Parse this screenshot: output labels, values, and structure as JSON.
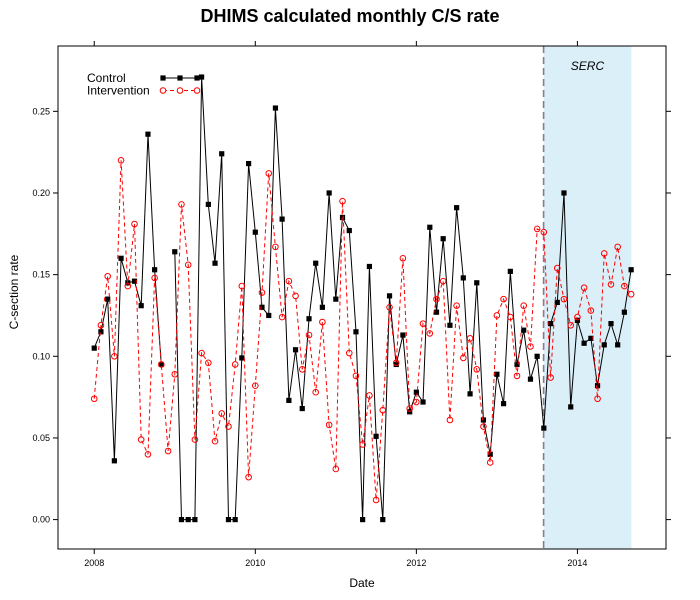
{
  "chart_data": {
    "type": "line",
    "title": "DHIMS calculated monthly C/S rate",
    "xlabel": "Date",
    "ylabel": "C-section rate",
    "xlim": [
      2007.55,
      2015.1
    ],
    "ylim": [
      -0.018,
      0.29
    ],
    "x_ticks": [
      2008,
      2010,
      2012,
      2014
    ],
    "x_tick_labels": [
      "2008",
      "2010",
      "2012",
      "2014"
    ],
    "y_ticks": [
      0.0,
      0.05,
      0.1,
      0.15,
      0.2,
      0.25
    ],
    "y_tick_labels": [
      "0.00",
      "0.05",
      "0.10",
      "0.15",
      "0.20",
      "0.25"
    ],
    "grid": false,
    "legend_position": "top-left",
    "annotation": {
      "label": "SERC",
      "vline_x": 2013.58,
      "shade_start": 2013.58,
      "shade_end": 2014.67,
      "shade_color": "#dbeff8",
      "line_color": "#8c7a8c"
    },
    "series": [
      {
        "name": "Control",
        "color": "#000000",
        "style": "solid",
        "marker": "square",
        "x": [
          2008.0,
          2008.083,
          2008.167,
          2008.25,
          2008.333,
          2008.417,
          2008.5,
          2008.583,
          2008.667,
          2008.75,
          2008.833,
          2008.917,
          2009.0,
          2009.083,
          2009.167,
          2009.25,
          2009.333,
          2009.417,
          2009.5,
          2009.583,
          2009.667,
          2009.75,
          2009.833,
          2009.917,
          2010.0,
          2010.083,
          2010.167,
          2010.25,
          2010.333,
          2010.417,
          2010.5,
          2010.583,
          2010.667,
          2010.75,
          2010.833,
          2010.917,
          2011.0,
          2011.083,
          2011.167,
          2011.25,
          2011.333,
          2011.417,
          2011.5,
          2011.583,
          2011.667,
          2011.75,
          2011.833,
          2011.917,
          2012.0,
          2012.083,
          2012.167,
          2012.25,
          2012.333,
          2012.417,
          2012.5,
          2012.583,
          2012.667,
          2012.75,
          2012.833,
          2012.917,
          2013.0,
          2013.083,
          2013.167,
          2013.25,
          2013.333,
          2013.417,
          2013.5,
          2013.583,
          2013.667,
          2013.75,
          2013.833,
          2013.917,
          2014.0,
          2014.083,
          2014.167,
          2014.25,
          2014.333,
          2014.417,
          2014.5,
          2014.583,
          2014.667
        ],
        "values": [
          0.105,
          0.115,
          0.135,
          0.036,
          0.16,
          0.145,
          0.146,
          0.131,
          0.236,
          0.153,
          0.095,
          null,
          0.164,
          0.0,
          0.0,
          0.0,
          0.271,
          0.193,
          0.157,
          0.224,
          0.0,
          0.0,
          0.099,
          0.218,
          0.176,
          0.13,
          0.125,
          0.252,
          0.184,
          0.073,
          0.104,
          0.068,
          0.123,
          0.157,
          0.13,
          0.2,
          0.135,
          0.185,
          0.177,
          0.115,
          0.0,
          0.155,
          0.051,
          0.0,
          0.137,
          0.095,
          0.113,
          0.066,
          0.078,
          0.072,
          0.179,
          0.127,
          0.172,
          0.119,
          0.191,
          0.148,
          0.077,
          0.145,
          0.061,
          0.04,
          0.089,
          0.071,
          0.152,
          0.095,
          0.116,
          0.086,
          0.1,
          0.056,
          0.12,
          0.133,
          0.2,
          0.069,
          0.122,
          0.108,
          0.111,
          0.082,
          0.107,
          0.12,
          0.107,
          0.127,
          0.153
        ]
      },
      {
        "name": "Intervention",
        "color": "#ff0000",
        "style": "dashed",
        "marker": "circle",
        "x": [
          2008.0,
          2008.083,
          2008.167,
          2008.25,
          2008.333,
          2008.417,
          2008.5,
          2008.583,
          2008.667,
          2008.75,
          2008.833,
          2008.917,
          2009.0,
          2009.083,
          2009.167,
          2009.25,
          2009.333,
          2009.417,
          2009.5,
          2009.583,
          2009.667,
          2009.75,
          2009.833,
          2009.917,
          2010.0,
          2010.083,
          2010.167,
          2010.25,
          2010.333,
          2010.417,
          2010.5,
          2010.583,
          2010.667,
          2010.75,
          2010.833,
          2010.917,
          2011.0,
          2011.083,
          2011.167,
          2011.25,
          2011.333,
          2011.417,
          2011.5,
          2011.583,
          2011.667,
          2011.75,
          2011.833,
          2011.917,
          2012.0,
          2012.083,
          2012.167,
          2012.25,
          2012.333,
          2012.417,
          2012.5,
          2012.583,
          2012.667,
          2012.75,
          2012.833,
          2012.917,
          2013.0,
          2013.083,
          2013.167,
          2013.25,
          2013.333,
          2013.417,
          2013.5,
          2013.583,
          2013.667,
          2013.75,
          2013.833,
          2013.917,
          2014.0,
          2014.083,
          2014.167,
          2014.25,
          2014.333,
          2014.417,
          2014.5,
          2014.583,
          2014.667
        ],
        "values": [
          0.074,
          0.119,
          0.149,
          0.1,
          0.22,
          0.143,
          0.181,
          0.049,
          0.04,
          0.148,
          0.095,
          0.042,
          0.089,
          0.193,
          0.156,
          0.049,
          0.102,
          0.096,
          0.048,
          0.065,
          0.057,
          0.095,
          0.143,
          0.026,
          0.082,
          0.139,
          0.212,
          0.167,
          0.124,
          0.146,
          0.137,
          0.092,
          0.113,
          0.078,
          0.121,
          0.058,
          0.031,
          0.195,
          0.102,
          0.088,
          0.046,
          0.076,
          0.012,
          0.067,
          0.13,
          0.096,
          0.16,
          0.068,
          0.072,
          0.12,
          0.114,
          0.135,
          0.146,
          0.061,
          0.131,
          0.099,
          0.111,
          0.092,
          0.057,
          0.035,
          0.125,
          0.135,
          0.124,
          0.088,
          0.131,
          0.106,
          0.178,
          0.176,
          0.087,
          0.154,
          0.135,
          0.119,
          0.124,
          0.142,
          0.128,
          0.074,
          0.163,
          0.144,
          0.167,
          0.143,
          0.138
        ]
      }
    ]
  }
}
